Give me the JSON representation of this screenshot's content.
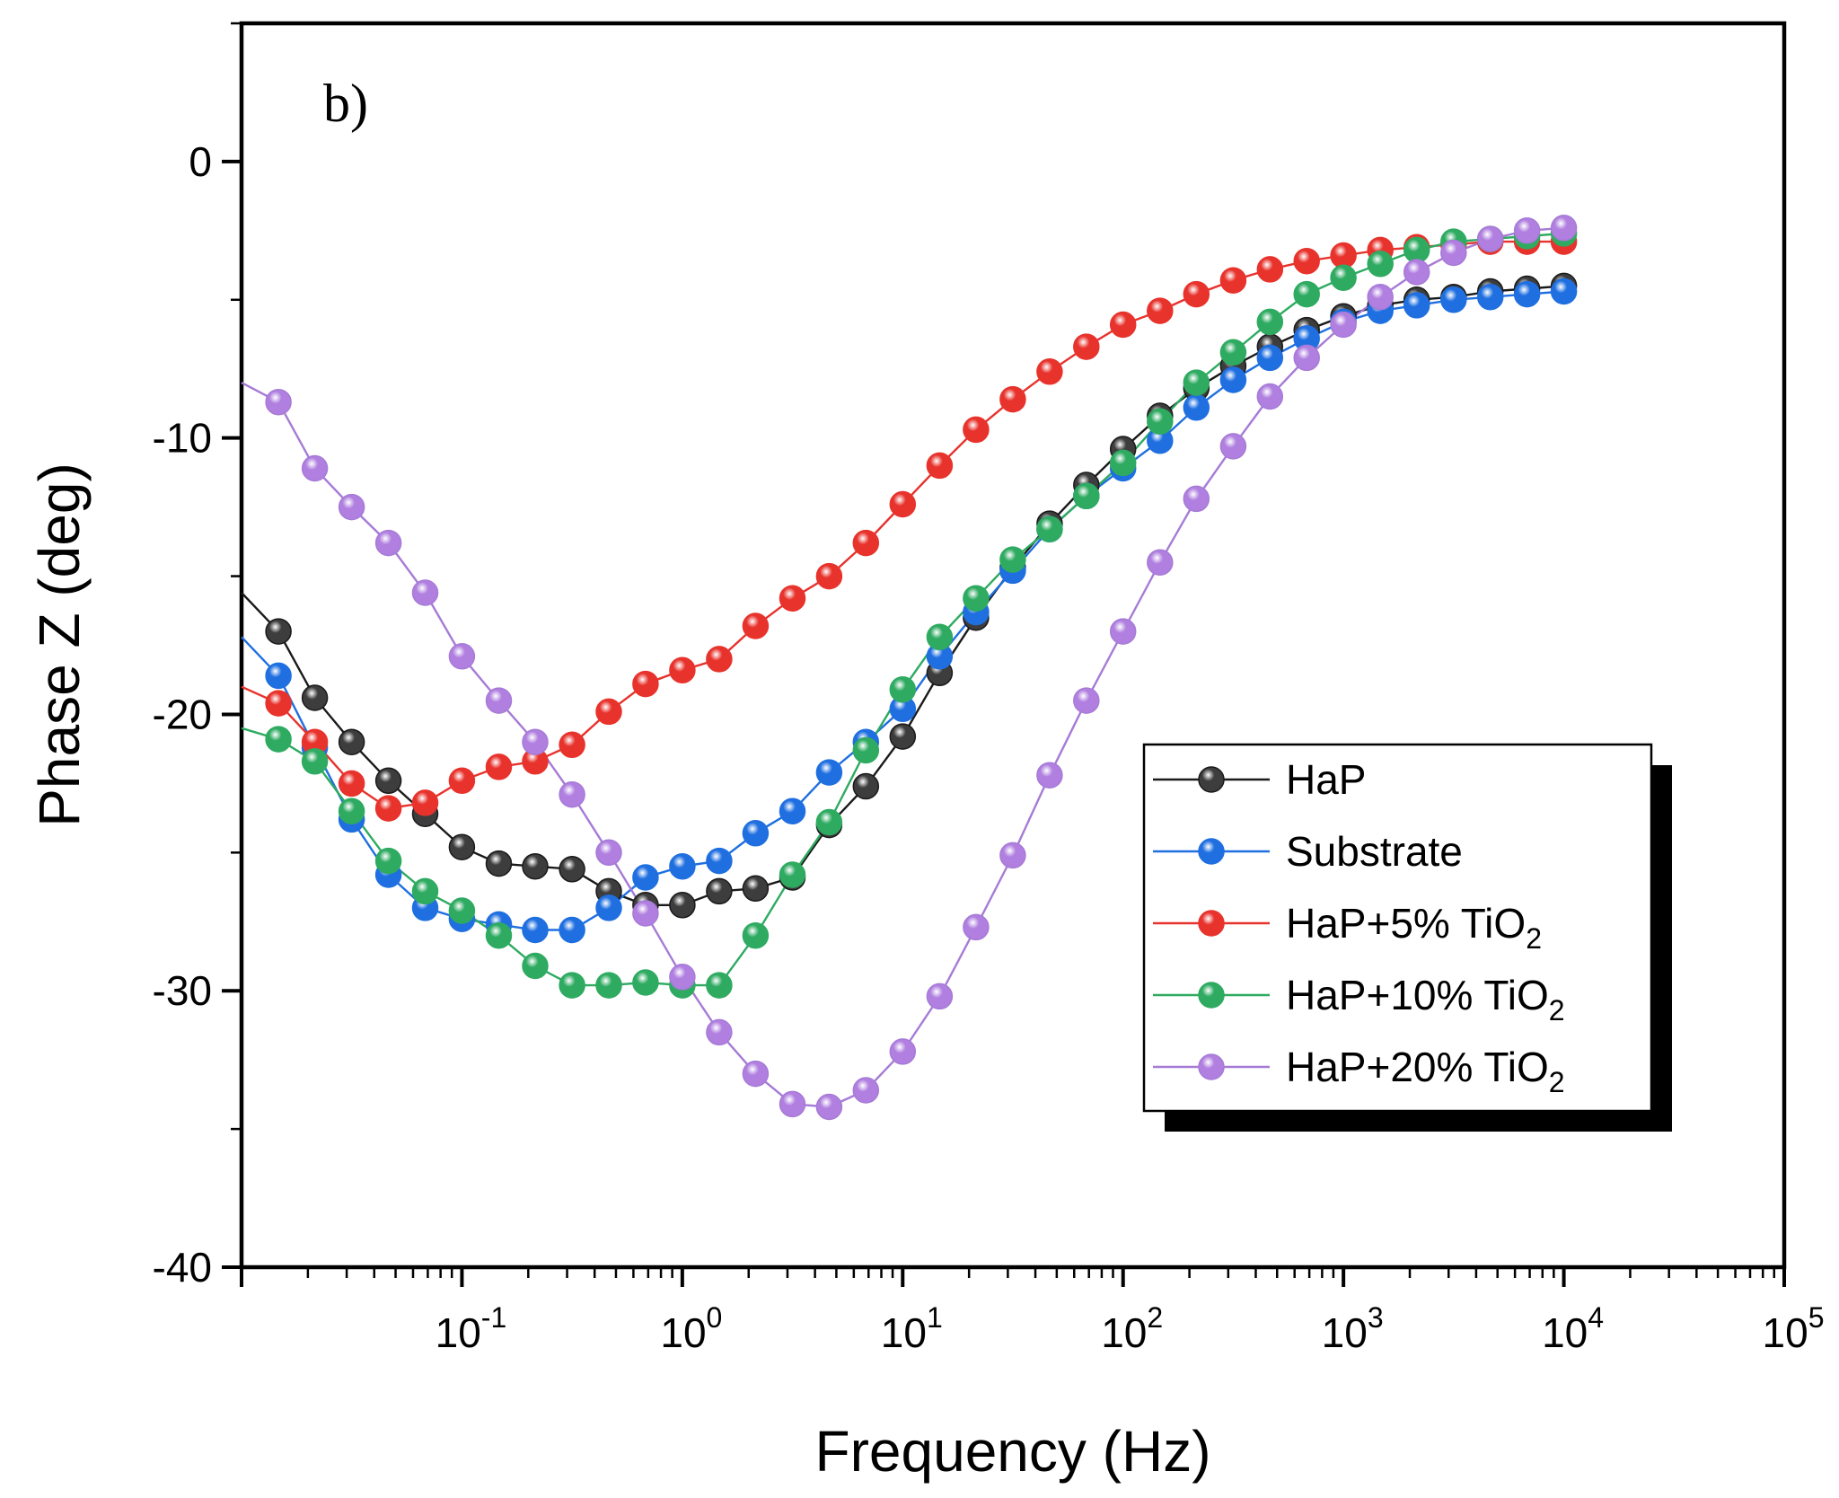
{
  "chart_data": {
    "type": "scatter",
    "panel_label": "b)",
    "xlabel": "Frequency (Hz)",
    "ylabel": "Phase Z (deg)",
    "x_scale": "log",
    "xlim": [
      0.01,
      100000
    ],
    "ylim": [
      -40,
      5
    ],
    "x_ticks": [
      {
        "value": 0.1,
        "base": "10",
        "exp": "-1"
      },
      {
        "value": 1,
        "base": "10",
        "exp": "0"
      },
      {
        "value": 10,
        "base": "10",
        "exp": "1"
      },
      {
        "value": 100,
        "base": "10",
        "exp": "2"
      },
      {
        "value": 1000,
        "base": "10",
        "exp": "3"
      },
      {
        "value": 10000,
        "base": "10",
        "exp": "4"
      },
      {
        "value": 100000,
        "base": "10",
        "exp": "5"
      }
    ],
    "y_ticks": [
      {
        "value": 0,
        "label": "0"
      },
      {
        "value": -10,
        "label": "-10"
      },
      {
        "value": -20,
        "label": "-20"
      },
      {
        "value": -30,
        "label": "-30"
      },
      {
        "value": -40,
        "label": "-40"
      }
    ],
    "legend_position": "lower-right",
    "x": [
      0.01,
      0.0147,
      0.0215,
      0.0316,
      0.0464,
      0.0681,
      0.1,
      0.147,
      0.215,
      0.316,
      0.464,
      0.681,
      1,
      1.47,
      2.15,
      3.16,
      4.64,
      6.81,
      10,
      14.7,
      21.5,
      31.6,
      46.4,
      68.1,
      100,
      147,
      215,
      316,
      464,
      681,
      1000,
      1470,
      2150,
      3160,
      4640,
      6810,
      10000
    ],
    "series": [
      {
        "name": "HaP",
        "color": "#3d3d3d",
        "line_color": "#1a1a1a",
        "y": [
          -15.6,
          -17.0,
          -19.4,
          -21.0,
          -22.4,
          -23.6,
          -24.8,
          -25.4,
          -25.5,
          -25.6,
          -26.4,
          -26.9,
          -26.9,
          -26.4,
          -26.3,
          -25.9,
          -24.0,
          -22.6,
          -20.8,
          -18.5,
          -16.5,
          -14.7,
          -13.1,
          -11.7,
          -10.4,
          -9.2,
          -8.2,
          -7.4,
          -6.7,
          -6.1,
          -5.6,
          -5.2,
          -5.0,
          -4.9,
          -4.7,
          -4.6,
          -4.5
        ]
      },
      {
        "name": "Substrate",
        "color": "#1f6fe0",
        "line_color": "#1f6fe0",
        "y": [
          -17.2,
          -18.6,
          -21.2,
          -23.8,
          -25.8,
          -27.0,
          -27.4,
          -27.6,
          -27.8,
          -27.8,
          -27.0,
          -25.9,
          -25.5,
          -25.3,
          -24.3,
          -23.5,
          -22.1,
          -21.0,
          -19.8,
          -17.9,
          -16.3,
          -14.8,
          -13.3,
          -12.1,
          -11.1,
          -10.1,
          -8.9,
          -7.9,
          -7.1,
          -6.4,
          -5.8,
          -5.4,
          -5.2,
          -5.0,
          -4.9,
          -4.8,
          -4.7
        ]
      },
      {
        "name": "HaP+5% TiO",
        "sub": "2",
        "color": "#e8322c",
        "line_color": "#e8322c",
        "y": [
          -19.0,
          -19.6,
          -21.0,
          -22.5,
          -23.4,
          -23.2,
          -22.4,
          -21.9,
          -21.7,
          -21.1,
          -19.9,
          -18.9,
          -18.4,
          -18.0,
          -16.8,
          -15.8,
          -15.0,
          -13.8,
          -12.4,
          -11.0,
          -9.7,
          -8.6,
          -7.6,
          -6.7,
          -5.9,
          -5.4,
          -4.8,
          -4.3,
          -3.9,
          -3.6,
          -3.4,
          -3.2,
          -3.1,
          -3.0,
          -2.9,
          -2.9,
          -2.9
        ]
      },
      {
        "name": "HaP+10% TiO",
        "sub": "2",
        "color": "#2eaa61",
        "line_color": "#2eaa61",
        "y": [
          -20.5,
          -20.9,
          -21.7,
          -23.5,
          -25.3,
          -26.4,
          -27.1,
          -28.0,
          -29.1,
          -29.8,
          -29.8,
          -29.7,
          -29.8,
          -29.8,
          -28.0,
          -25.8,
          -23.9,
          -21.3,
          -19.1,
          -17.2,
          -15.8,
          -14.4,
          -13.3,
          -12.1,
          -10.9,
          -9.4,
          -8.0,
          -6.9,
          -5.8,
          -4.8,
          -4.2,
          -3.7,
          -3.2,
          -2.9,
          -2.8,
          -2.7,
          -2.6
        ]
      },
      {
        "name": "HaP+20% TiO",
        "sub": "2",
        "color": "#b07fe0",
        "line_color": "#a67bd6",
        "y": [
          -8.0,
          -8.7,
          -11.1,
          -12.5,
          -13.8,
          -15.6,
          -17.9,
          -19.5,
          -21.0,
          -22.9,
          -25.0,
          -27.2,
          -29.5,
          -31.5,
          -33.0,
          -34.1,
          -34.2,
          -33.6,
          -32.2,
          -30.2,
          -27.7,
          -25.1,
          -22.2,
          -19.5,
          -17.0,
          -14.5,
          -12.2,
          -10.3,
          -8.5,
          -7.1,
          -5.9,
          -4.9,
          -4.0,
          -3.3,
          -2.8,
          -2.5,
          -2.4
        ]
      }
    ]
  }
}
